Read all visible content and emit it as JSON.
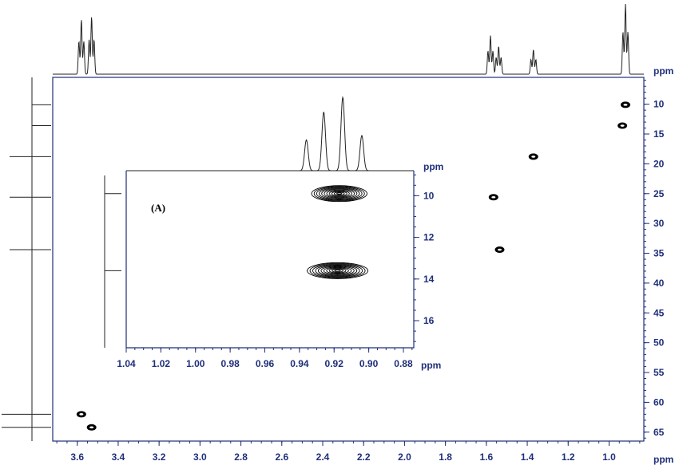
{
  "colors": {
    "axis": "#1f2f7a",
    "trace": "#222222",
    "peak": "#000000"
  },
  "main": {
    "type": "2D NMR correlation (HSQC)",
    "x_unit": "ppm",
    "y_unit": "ppm",
    "x_ticks": [
      "3.6",
      "3.4",
      "3.2",
      "3.0",
      "2.8",
      "2.6",
      "2.4",
      "2.2",
      "2.0",
      "1.8",
      "1.6",
      "1.4",
      "1.2",
      "1.0"
    ],
    "y_ticks": [
      "10",
      "15",
      "20",
      "25",
      "30",
      "35",
      "40",
      "45",
      "50",
      "55",
      "60",
      "65"
    ]
  },
  "inset": {
    "label": "(A)",
    "x_unit": "ppm",
    "y_unit": "ppm",
    "x_ticks": [
      "1.04",
      "1.02",
      "1.00",
      "0.98",
      "0.96",
      "0.94",
      "0.92",
      "0.90",
      "0.88"
    ],
    "y_ticks": [
      "10",
      "12",
      "14",
      "16"
    ]
  },
  "chart_data": [
    {
      "type": "scatter",
      "title": "",
      "xlabel": "ppm",
      "ylabel": "ppm",
      "xlim": [
        3.72,
        0.83
      ],
      "ylim": [
        5.5,
        66.5
      ],
      "x_reversed": true,
      "y_reversed": true,
      "points": [
        {
          "x": 0.92,
          "y": 10.1
        },
        {
          "x": 0.935,
          "y": 13.6
        },
        {
          "x": 1.37,
          "y": 18.8
        },
        {
          "x": 1.565,
          "y": 25.6
        },
        {
          "x": 1.535,
          "y": 34.4
        },
        {
          "x": 3.58,
          "y": 62.0
        },
        {
          "x": 3.53,
          "y": 64.2
        }
      ],
      "top_projection_peaks": [
        {
          "x": 3.58,
          "h": 0.78
        },
        {
          "x": 3.53,
          "h": 0.82
        },
        {
          "x": 1.58,
          "h": 0.55
        },
        {
          "x": 1.54,
          "h": 0.4
        },
        {
          "x": 1.37,
          "h": 0.35
        },
        {
          "x": 0.92,
          "h": 1.0
        }
      ],
      "left_projection_peaks": [
        10.1,
        13.6,
        18.8,
        25.6,
        34.4,
        62.0,
        64.2
      ]
    },
    {
      "type": "scatter",
      "title": "",
      "label": "(A)",
      "xlabel": "ppm",
      "ylabel": "ppm",
      "xlim": [
        1.04,
        0.874
      ],
      "ylim": [
        8.8,
        17.3
      ],
      "x_reversed": true,
      "y_reversed": true,
      "points": [
        {
          "x": 0.917,
          "y": 9.9,
          "width_ppm": 0.032
        },
        {
          "x": 0.918,
          "y": 13.6,
          "width_ppm": 0.035
        }
      ],
      "top_projection_peaks": [
        {
          "x": 0.936,
          "h": 0.42
        },
        {
          "x": 0.926,
          "h": 0.8
        },
        {
          "x": 0.915,
          "h": 1.0
        },
        {
          "x": 0.904,
          "h": 0.48
        }
      ],
      "left_projection_peaks": [
        9.9,
        13.6
      ]
    }
  ]
}
